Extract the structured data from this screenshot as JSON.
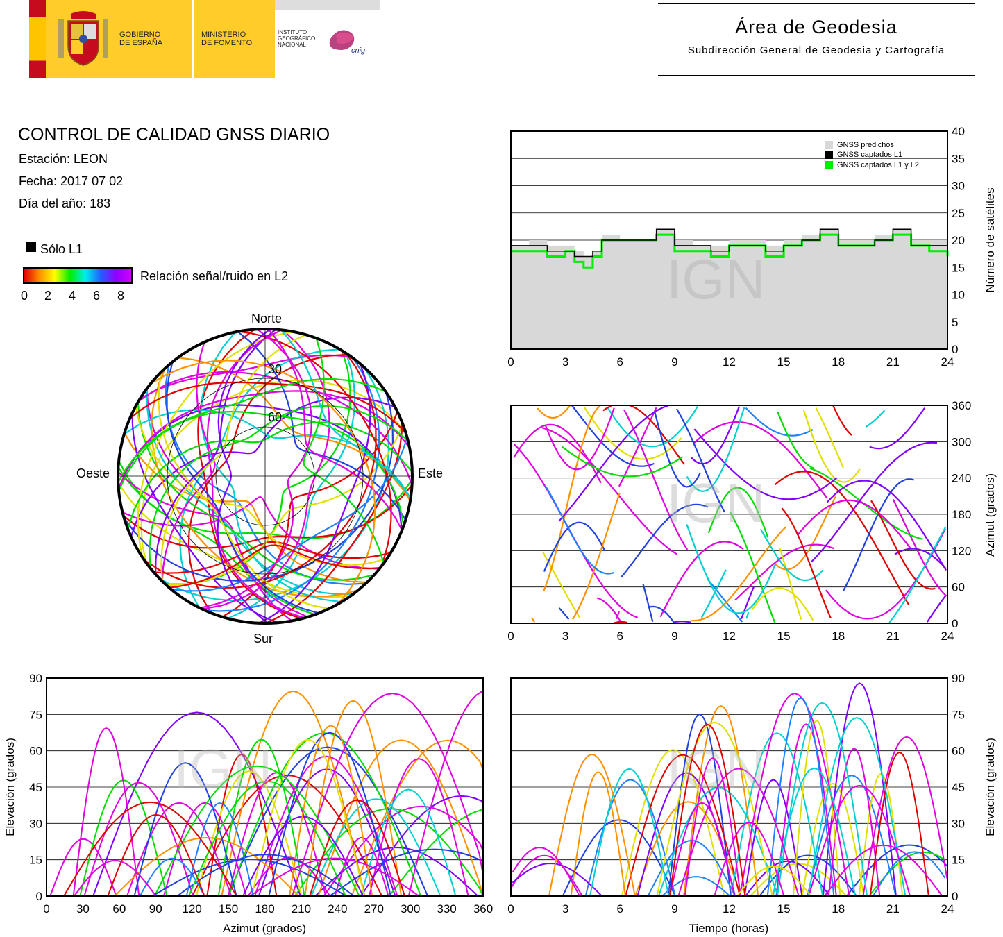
{
  "header": {
    "gov_line1": "GOBIERNO",
    "gov_line2": "DE ESPAÑA",
    "min_line1": "MINISTERIO",
    "min_line2": "DE FOMENTO",
    "ign_line1": "INSTITUTO",
    "ign_line2": "GEOGRÁFICO",
    "ign_line3": "NACIONAL",
    "cnig": "cnig",
    "area_title": "Área de Geodesia",
    "area_subtitle": "Subdirección General de Geodesia y Cartografía"
  },
  "info": {
    "title": "CONTROL DE CALIDAD GNSS DIARIO",
    "station": "Estación: LEON",
    "date": "Fecha: 2017 07 02",
    "doy": "Día del año: 183",
    "legend_l1": "Sólo L1",
    "legend_snr": "Relación señal/ruido en L2",
    "snr_ticks": [
      "0",
      "2",
      "4",
      "6",
      "8"
    ]
  },
  "watermark": "IGN",
  "colors": {
    "predicted": "#d8d8d8",
    "l1": "#000000",
    "l1l2": "#00ee00"
  },
  "chart_data": [
    {
      "type": "area",
      "id": "satellites",
      "ylabel": "Número de satélites",
      "xlim": [
        0,
        24
      ],
      "ylim": [
        0,
        40
      ],
      "xticks": [
        "0",
        "3",
        "6",
        "9",
        "12",
        "15",
        "18",
        "21",
        "24"
      ],
      "yticks": [
        "0",
        "5",
        "10",
        "15",
        "20",
        "25",
        "30",
        "35",
        "40"
      ],
      "legend": [
        "GNSS predichos",
        "GNSS captados L1",
        "GNSS captados L1 y L2"
      ],
      "legend_position": "top-right",
      "x": [
        0,
        1,
        2,
        3,
        3.5,
        4,
        4.5,
        5,
        6,
        7,
        8,
        9,
        10,
        11,
        12,
        13,
        14,
        15,
        16,
        17,
        18,
        19,
        20,
        21,
        22,
        23,
        24
      ],
      "predicted": [
        19,
        20,
        19,
        19,
        18,
        17,
        18,
        21,
        20,
        20,
        22,
        20,
        19,
        19,
        20,
        20,
        19,
        20,
        21,
        22,
        20,
        20,
        21,
        22,
        20,
        20,
        19
      ],
      "captured_l1": [
        19,
        19,
        18,
        18,
        17,
        17,
        18,
        20,
        20,
        20,
        22,
        19,
        19,
        18,
        19,
        19,
        18,
        19,
        20,
        22,
        19,
        19,
        20,
        22,
        19,
        19,
        18
      ],
      "captured_l1l2": [
        18,
        18,
        17,
        18,
        16,
        15,
        17,
        20,
        20,
        20,
        21,
        18,
        18,
        17,
        19,
        19,
        17,
        19,
        20,
        21,
        19,
        19,
        20,
        21,
        19,
        18,
        17
      ]
    },
    {
      "type": "line",
      "id": "azimuth-time",
      "ylabel": "Azimut (grados)",
      "xlim": [
        0,
        24
      ],
      "ylim": [
        0,
        360
      ],
      "xticks": [
        "0",
        "3",
        "6",
        "9",
        "12",
        "15",
        "18",
        "21",
        "24"
      ],
      "yticks": [
        "0",
        "60",
        "120",
        "180",
        "240",
        "300",
        "360"
      ]
    },
    {
      "type": "scatter",
      "id": "skyplot",
      "labels": {
        "north": "Norte",
        "south": "Sur",
        "west": "Oeste",
        "east": "Este"
      },
      "rings": [
        "30",
        "60"
      ]
    },
    {
      "type": "line",
      "id": "elevation-azimuth",
      "xlabel": "Azimut (grados)",
      "ylabel": "Elevación (grados)",
      "xlim": [
        0,
        360
      ],
      "ylim": [
        0,
        90
      ],
      "xticks": [
        "0",
        "30",
        "60",
        "90",
        "120",
        "150",
        "180",
        "210",
        "240",
        "270",
        "300",
        "330",
        "360"
      ],
      "yticks": [
        "0",
        "15",
        "30",
        "45",
        "60",
        "75",
        "90"
      ]
    },
    {
      "type": "line",
      "id": "elevation-time",
      "xlabel": "Tiempo (horas)",
      "ylabel": "Elevación (grados)",
      "xlim": [
        0,
        24
      ],
      "ylim": [
        0,
        90
      ],
      "xticks": [
        "0",
        "3",
        "6",
        "9",
        "12",
        "15",
        "18",
        "21",
        "24"
      ],
      "yticks": [
        "0",
        "15",
        "30",
        "45",
        "60",
        "75",
        "90"
      ]
    }
  ]
}
